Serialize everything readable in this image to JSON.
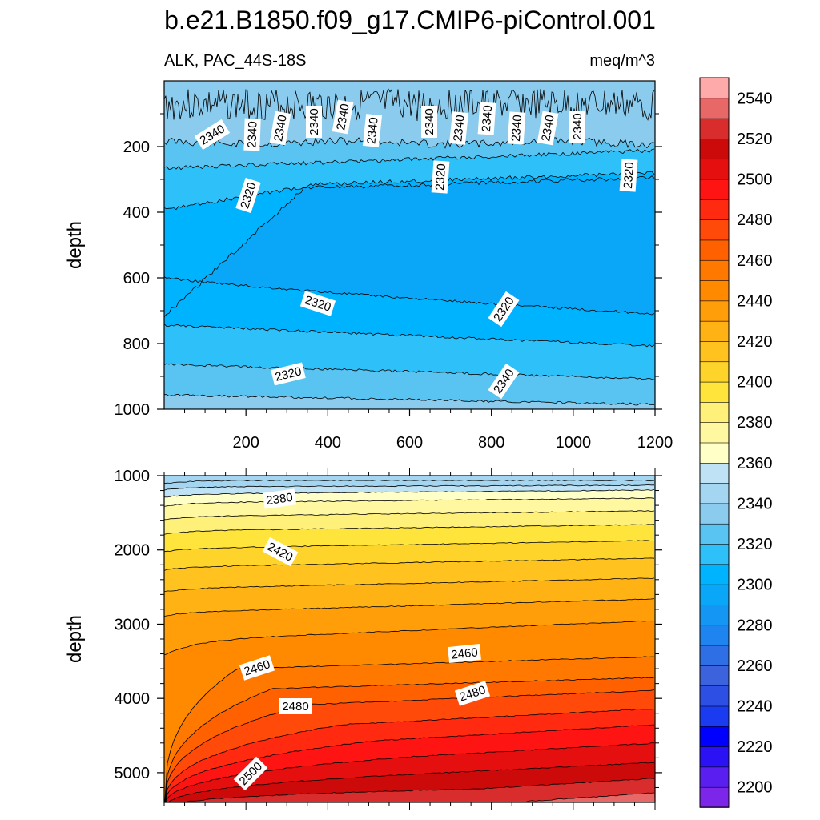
{
  "chart_data": {
    "type": "contour",
    "title": "b.e21.B1850.f09_g17.CMIP6-piControl.001",
    "subtitle_left": "ALK, PAC_44S-18S",
    "subtitle_right": "meq/m^3",
    "variable": "ALK",
    "units": "meq/m^3",
    "colorbar": {
      "levels": [
        2200,
        2210,
        2220,
        2230,
        2240,
        2250,
        2260,
        2270,
        2280,
        2290,
        2300,
        2310,
        2320,
        2330,
        2340,
        2350,
        2360,
        2370,
        2380,
        2390,
        2400,
        2410,
        2420,
        2430,
        2440,
        2450,
        2460,
        2470,
        2480,
        2490,
        2500,
        2510,
        2520,
        2530,
        2540,
        2550
      ],
      "tick_labels": [
        "2200",
        "2220",
        "2240",
        "2260",
        "2280",
        "2300",
        "2320",
        "2340",
        "2360",
        "2380",
        "2400",
        "2420",
        "2440",
        "2460",
        "2480",
        "2500",
        "2520",
        "2540"
      ],
      "colors": [
        "#7b26e8",
        "#5a1ff0",
        "#2a12f5",
        "#0000ff",
        "#1a3bf0",
        "#2e4fe4",
        "#3c63dd",
        "#2f6fe6",
        "#1e84f0",
        "#1496f5",
        "#0aa7f8",
        "#00b3ff",
        "#2ec0f9",
        "#59c4f2",
        "#8acbee",
        "#a5d6f1",
        "#bfe3f4",
        "#ffffc8",
        "#fff8a0",
        "#fff07a",
        "#ffe43c",
        "#ffd42a",
        "#ffc21e",
        "#ffb214",
        "#ff9e08",
        "#ff8a00",
        "#ff7800",
        "#ff6000",
        "#ff4a0a",
        "#ff2a10",
        "#ff1414",
        "#e60f0f",
        "#cc0a0a",
        "#d92c2c",
        "#e86868",
        "#ffaaaa"
      ]
    },
    "panels": [
      {
        "name": "upper",
        "ylabel": "depth",
        "xlim": [
          0,
          1200
        ],
        "ylim": [
          0,
          1000
        ],
        "y_ticks": [
          200,
          400,
          600,
          800,
          1000
        ],
        "x_ticks": [
          200,
          400,
          600,
          800,
          1000,
          1200
        ],
        "contour_labels": [
          "2340",
          "2340",
          "2340",
          "2340",
          "2340",
          "2340",
          "2340",
          "2340",
          "2340",
          "2340",
          "2340",
          "2340",
          "2320",
          "2320",
          "2320",
          "2320",
          "2320",
          "2320",
          "2340",
          "2340"
        ]
      },
      {
        "name": "lower",
        "ylabel": "depth",
        "xlim": [
          0,
          1200
        ],
        "ylim": [
          1000,
          5400
        ],
        "y_ticks": [
          1000,
          2000,
          3000,
          4000,
          5000
        ],
        "contour_labels": [
          "2380",
          "2420",
          "2460",
          "2460",
          "2480",
          "2480",
          "2500"
        ]
      }
    ]
  }
}
